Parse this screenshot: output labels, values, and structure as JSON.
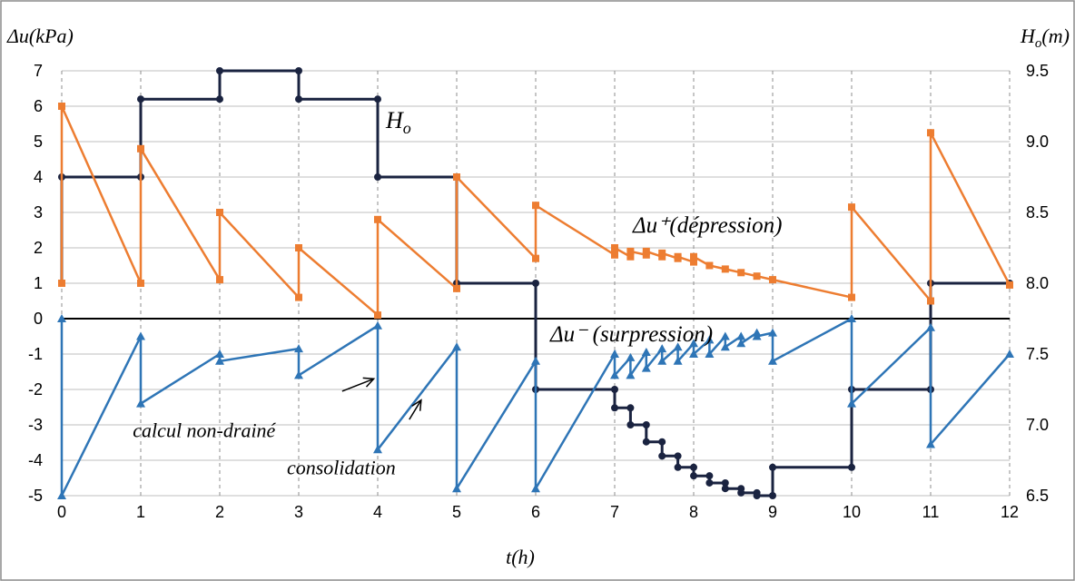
{
  "chart_data": {
    "type": "line",
    "xlabel": "t(h)",
    "ylabel_left": "Δu(kPa)",
    "ylabel_right": {
      "base": "H",
      "sub": "o",
      "unit": "(m)"
    },
    "xlim": [
      0,
      12
    ],
    "ylim_left": [
      -5,
      7
    ],
    "ylim_right": [
      6.5,
      9.5
    ],
    "x_ticks": [
      "0",
      "1",
      "2",
      "3",
      "4",
      "5",
      "6",
      "7",
      "8",
      "9",
      "10",
      "11",
      "12"
    ],
    "y_left_ticks": [
      "7",
      "6",
      "5",
      "4",
      "3",
      "2",
      "1",
      "0",
      "-1",
      "-2",
      "-3",
      "-4",
      "-5"
    ],
    "y_right_ticks": [
      "9.5",
      "9.0",
      "8.5",
      "8.0",
      "7.5",
      "7.0",
      "6.5"
    ],
    "grid": {
      "vertical": "dashed",
      "horizontal": "solid"
    },
    "colors": {
      "H": "#1a2340",
      "du_plus": "#ed7d31",
      "du_minus": "#2e75b6",
      "zero_line": "#000000"
    },
    "series": [
      {
        "key": "H",
        "axis": "right",
        "marker": "circle",
        "label": {
          "base": "H",
          "sub": "o"
        },
        "x": [
          0,
          0,
          1,
          1,
          2,
          2,
          3,
          3,
          4,
          4,
          5,
          5,
          6,
          6,
          7,
          7,
          7.2,
          7.2,
          7.4,
          7.4,
          7.6,
          7.6,
          7.8,
          7.8,
          8,
          8,
          8.2,
          8.2,
          8.4,
          8.4,
          8.6,
          8.6,
          8.8,
          8.8,
          9,
          9,
          10,
          10,
          11,
          11,
          12
        ],
        "y": [
          8,
          8.75,
          8.75,
          9.3,
          9.3,
          9.5,
          9.5,
          9.3,
          9.3,
          8.75,
          8.75,
          8,
          8,
          7.25,
          7.25,
          7.12,
          7.12,
          7,
          7,
          6.88,
          6.88,
          6.78,
          6.78,
          6.7,
          6.7,
          6.64,
          6.64,
          6.59,
          6.59,
          6.55,
          6.55,
          6.52,
          6.52,
          6.5,
          6.5,
          6.7,
          6.7,
          7.25,
          7.25,
          8,
          8
        ]
      },
      {
        "key": "du_plus",
        "axis": "left",
        "marker": "square",
        "label": {
          "text": "Δu⁺(dépression)"
        },
        "x": [
          0,
          0,
          1,
          1,
          2,
          2,
          3,
          3,
          4,
          4,
          5,
          5,
          6,
          6,
          7,
          7,
          7.2,
          7.2,
          7.4,
          7.4,
          7.6,
          7.6,
          7.8,
          7.8,
          8,
          8,
          8.2,
          8.4,
          8.6,
          8.8,
          9,
          10,
          10,
          11,
          11,
          12
        ],
        "y": [
          1,
          6,
          1,
          4.8,
          1.1,
          3,
          0.6,
          2,
          0.1,
          2.8,
          0.85,
          4,
          1.7,
          3.2,
          1.8,
          2,
          1.75,
          1.9,
          1.8,
          1.9,
          1.75,
          1.85,
          1.7,
          1.75,
          1.6,
          1.75,
          1.5,
          1.4,
          1.3,
          1.2,
          1.1,
          0.6,
          3.15,
          0.5,
          5.25,
          0.95
        ]
      },
      {
        "key": "du_minus",
        "axis": "left",
        "marker": "triangle",
        "label": {
          "text": "Δu⁻ (surpression)"
        },
        "x": [
          0,
          0,
          1,
          1,
          2,
          2,
          3,
          3,
          4,
          4,
          5,
          5,
          6,
          6,
          7,
          7,
          7.2,
          7.2,
          7.4,
          7.4,
          7.6,
          7.6,
          7.8,
          7.8,
          8,
          8,
          8.2,
          8.2,
          8.4,
          8.4,
          8.6,
          8.6,
          8.8,
          8.8,
          9,
          9,
          10,
          10,
          11,
          11,
          12
        ],
        "y": [
          0,
          -5,
          -0.5,
          -2.4,
          -1,
          -1.2,
          -0.85,
          -1.6,
          -0.2,
          -3.7,
          -0.8,
          -4.8,
          -1.2,
          -4.8,
          -1,
          -1.6,
          -1.1,
          -1.6,
          -0.95,
          -1.4,
          -0.85,
          -1.2,
          -0.8,
          -1.2,
          -0.7,
          -1,
          -0.6,
          -1,
          -0.5,
          -0.8,
          -0.5,
          -0.7,
          -0.4,
          -0.5,
          -0.4,
          -1.2,
          0,
          -2.4,
          -0.25,
          -3.55,
          -1
        ]
      }
    ],
    "annotations": [
      {
        "text": "calcul non-drainé",
        "x": 0.9,
        "y": -3.35
      },
      {
        "text": "consolidation",
        "x": 2.85,
        "y": -4.4
      }
    ],
    "arrows": [
      {
        "from": [
          3.55,
          -2.05
        ],
        "to": [
          3.95,
          -1.7
        ]
      },
      {
        "from": [
          4.4,
          -2.85
        ],
        "to": [
          4.55,
          -2.3
        ]
      }
    ]
  }
}
